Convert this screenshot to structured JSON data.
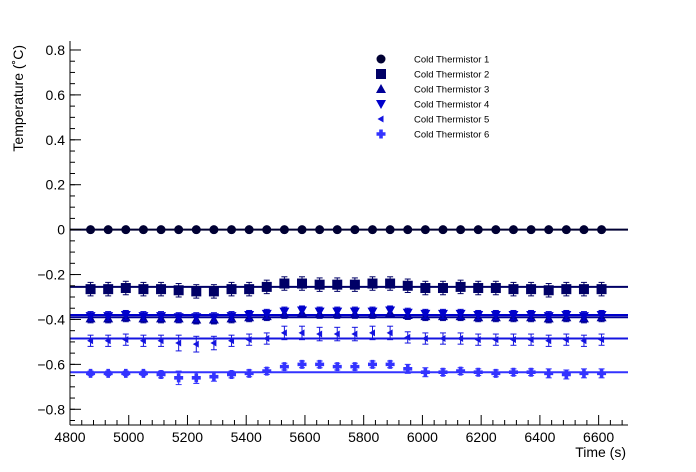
{
  "chart_data": {
    "type": "scatter",
    "xlabel": "Time (s)",
    "ylabel": "Temperature (˚C)",
    "xlim": [
      4800,
      6700
    ],
    "ylim": [
      -0.87,
      0.84
    ],
    "x_ticks": [
      4800,
      5000,
      5200,
      5400,
      5600,
      5800,
      6000,
      6200,
      6400,
      6600
    ],
    "y_ticks": [
      -0.8,
      -0.6,
      -0.4,
      -0.2,
      0,
      0.2,
      0.4,
      0.6,
      0.8
    ],
    "grid": false,
    "legend_position": "top-right",
    "x": [
      4870,
      4930,
      4990,
      5050,
      5110,
      5170,
      5230,
      5290,
      5350,
      5410,
      5470,
      5530,
      5590,
      5650,
      5710,
      5770,
      5830,
      5890,
      5950,
      6010,
      6070,
      6130,
      6190,
      6250,
      6310,
      6370,
      6430,
      6490,
      6550,
      6610
    ],
    "series": [
      {
        "name": "Cold Thermistor 1",
        "color": "#000033",
        "marker": "circle",
        "fit": 0.0,
        "values": [
          0,
          0,
          0,
          0,
          0,
          0,
          0,
          0,
          0,
          0,
          0,
          0,
          0,
          0,
          0,
          0,
          0,
          0,
          0,
          0,
          0,
          0,
          0,
          0,
          0,
          0,
          0,
          0,
          0,
          0
        ],
        "errors": [
          0.005,
          0.005,
          0.005,
          0.005,
          0.005,
          0.005,
          0.005,
          0.005,
          0.005,
          0.005,
          0.005,
          0.005,
          0.005,
          0.005,
          0.005,
          0.005,
          0.005,
          0.005,
          0.005,
          0.005,
          0.005,
          0.005,
          0.005,
          0.005,
          0.005,
          0.005,
          0.005,
          0.005,
          0.005,
          0.005
        ]
      },
      {
        "name": "Cold Thermistor 2",
        "color": "#000066",
        "marker": "square",
        "fit": -0.255,
        "values": [
          -0.265,
          -0.265,
          -0.26,
          -0.265,
          -0.265,
          -0.27,
          -0.275,
          -0.275,
          -0.265,
          -0.265,
          -0.255,
          -0.24,
          -0.24,
          -0.245,
          -0.245,
          -0.245,
          -0.24,
          -0.24,
          -0.25,
          -0.26,
          -0.26,
          -0.255,
          -0.26,
          -0.26,
          -0.265,
          -0.265,
          -0.27,
          -0.265,
          -0.265,
          -0.265
        ],
        "errors": [
          0.03,
          0.03,
          0.03,
          0.03,
          0.03,
          0.03,
          0.03,
          0.03,
          0.03,
          0.03,
          0.03,
          0.03,
          0.03,
          0.03,
          0.03,
          0.03,
          0.03,
          0.03,
          0.03,
          0.03,
          0.03,
          0.03,
          0.03,
          0.03,
          0.03,
          0.03,
          0.03,
          0.03,
          0.03,
          0.03
        ]
      },
      {
        "name": "Cold Thermistor 3",
        "color": "#000099",
        "marker": "triangle-up",
        "fit": -0.39,
        "values": [
          -0.395,
          -0.395,
          -0.39,
          -0.395,
          -0.395,
          -0.395,
          -0.4,
          -0.4,
          -0.395,
          -0.39,
          -0.385,
          -0.375,
          -0.37,
          -0.375,
          -0.375,
          -0.375,
          -0.375,
          -0.37,
          -0.38,
          -0.385,
          -0.385,
          -0.385,
          -0.39,
          -0.39,
          -0.39,
          -0.39,
          -0.395,
          -0.39,
          -0.395,
          -0.39
        ],
        "errors": [
          0.02,
          0.02,
          0.02,
          0.02,
          0.02,
          0.02,
          0.02,
          0.02,
          0.02,
          0.02,
          0.02,
          0.02,
          0.02,
          0.02,
          0.02,
          0.02,
          0.02,
          0.02,
          0.02,
          0.02,
          0.02,
          0.02,
          0.02,
          0.02,
          0.02,
          0.02,
          0.02,
          0.02,
          0.02,
          0.02
        ]
      },
      {
        "name": "Cold Thermistor 4",
        "color": "#0000cc",
        "marker": "triangle-down",
        "fit": -0.38,
        "values": [
          -0.385,
          -0.385,
          -0.38,
          -0.385,
          -0.385,
          -0.39,
          -0.39,
          -0.39,
          -0.385,
          -0.38,
          -0.375,
          -0.365,
          -0.36,
          -0.365,
          -0.365,
          -0.365,
          -0.365,
          -0.36,
          -0.37,
          -0.375,
          -0.375,
          -0.375,
          -0.38,
          -0.38,
          -0.38,
          -0.38,
          -0.385,
          -0.38,
          -0.385,
          -0.38
        ],
        "errors": [
          0.02,
          0.02,
          0.02,
          0.02,
          0.02,
          0.02,
          0.02,
          0.02,
          0.02,
          0.02,
          0.02,
          0.02,
          0.02,
          0.02,
          0.02,
          0.02,
          0.02,
          0.02,
          0.02,
          0.02,
          0.02,
          0.02,
          0.02,
          0.02,
          0.02,
          0.02,
          0.02,
          0.02,
          0.02,
          0.02
        ]
      },
      {
        "name": "Cold Thermistor 5",
        "color": "#1414e0",
        "marker": "triangle-left",
        "fit": -0.485,
        "values": [
          -0.495,
          -0.495,
          -0.49,
          -0.495,
          -0.495,
          -0.505,
          -0.51,
          -0.505,
          -0.495,
          -0.49,
          -0.485,
          -0.46,
          -0.46,
          -0.465,
          -0.465,
          -0.465,
          -0.46,
          -0.46,
          -0.48,
          -0.485,
          -0.485,
          -0.485,
          -0.49,
          -0.49,
          -0.49,
          -0.49,
          -0.495,
          -0.49,
          -0.495,
          -0.49
        ],
        "errors": [
          0.025,
          0.025,
          0.025,
          0.025,
          0.025,
          0.035,
          0.035,
          0.03,
          0.025,
          0.025,
          0.025,
          0.03,
          0.03,
          0.03,
          0.03,
          0.03,
          0.03,
          0.03,
          0.025,
          0.025,
          0.025,
          0.025,
          0.025,
          0.025,
          0.025,
          0.025,
          0.025,
          0.025,
          0.025,
          0.025
        ]
      },
      {
        "name": "Cold Thermistor 6",
        "color": "#3333ff",
        "marker": "cross",
        "fit": -0.635,
        "values": [
          -0.64,
          -0.64,
          -0.64,
          -0.64,
          -0.645,
          -0.66,
          -0.66,
          -0.655,
          -0.645,
          -0.64,
          -0.63,
          -0.61,
          -0.6,
          -0.6,
          -0.61,
          -0.61,
          -0.6,
          -0.6,
          -0.62,
          -0.635,
          -0.635,
          -0.63,
          -0.635,
          -0.64,
          -0.635,
          -0.635,
          -0.64,
          -0.645,
          -0.64,
          -0.64
        ],
        "errors": [
          0.01,
          0.01,
          0.01,
          0.01,
          0.015,
          0.03,
          0.025,
          0.02,
          0.015,
          0.015,
          0.015,
          0.015,
          0.015,
          0.015,
          0.015,
          0.015,
          0.015,
          0.015,
          0.02,
          0.02,
          0.015,
          0.015,
          0.015,
          0.015,
          0.015,
          0.015,
          0.02,
          0.02,
          0.02,
          0.02
        ]
      }
    ]
  }
}
